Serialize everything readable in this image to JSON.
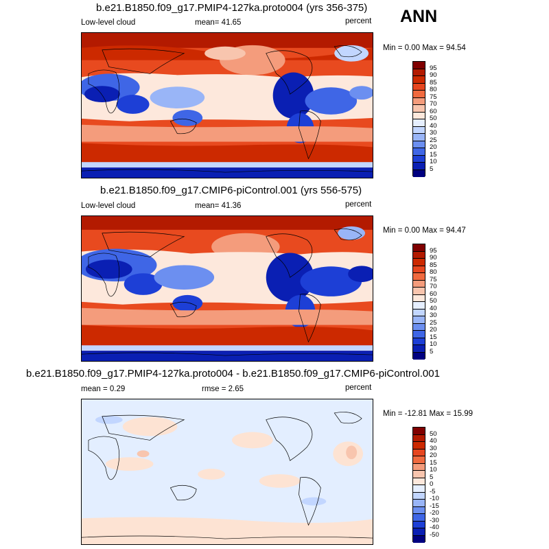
{
  "season": "ANN",
  "panels": [
    {
      "title": "b.e21.B1850.f09_g17.PMIP4-127ka.proto004 (yrs 356-375)",
      "left_label": "Low-level cloud",
      "mid_label": "mean=  41.65",
      "units": "percent",
      "minmax": "Min =  0.00 Max =  94.54",
      "colorbar": {
        "labels": [
          "95",
          "90",
          "85",
          "80",
          "75",
          "70",
          "60",
          "50",
          "40",
          "30",
          "25",
          "20",
          "15",
          "10",
          "5"
        ],
        "colors": [
          "#800000",
          "#b31a00",
          "#cc2900",
          "#e6461f",
          "#f06a3f",
          "#f49c7c",
          "#f8c5ae",
          "#fde8dc",
          "#e6efff",
          "#c2d6ff",
          "#99b5f7",
          "#6c8ff0",
          "#3f66e6",
          "#1d3fd6",
          "#0a1fb3",
          "#000080"
        ]
      }
    },
    {
      "title": "b.e21.B1850.f09_g17.CMIP6-piControl.001 (yrs 556-575)",
      "left_label": "Low-level cloud",
      "mid_label": "mean=  41.36",
      "units": "percent",
      "minmax": "Min =  0.00 Max =  94.47",
      "colorbar": {
        "labels": [
          "95",
          "90",
          "85",
          "80",
          "75",
          "70",
          "60",
          "50",
          "40",
          "30",
          "25",
          "20",
          "15",
          "10",
          "5"
        ],
        "colors": [
          "#800000",
          "#b31a00",
          "#cc2900",
          "#e6461f",
          "#f06a3f",
          "#f49c7c",
          "#f8c5ae",
          "#fde8dc",
          "#e6efff",
          "#c2d6ff",
          "#99b5f7",
          "#6c8ff0",
          "#3f66e6",
          "#1d3fd6",
          "#0a1fb3",
          "#000080"
        ]
      }
    },
    {
      "title": "b.e21.B1850.f09_g17.PMIP4-127ka.proto004 - b.e21.B1850.f09_g17.CMIP6-piControl.001",
      "left_label": "mean =   0.29",
      "mid_label": "rmse =   2.65",
      "units": "percent",
      "minmax": "Min = -12.81 Max =  15.99",
      "colorbar": {
        "labels": [
          "50",
          "40",
          "30",
          "20",
          "15",
          "10",
          "5",
          "0",
          "-5",
          "-10",
          "-15",
          "-20",
          "-30",
          "-40",
          "-50"
        ],
        "colors": [
          "#800000",
          "#b31a00",
          "#cc2900",
          "#e6461f",
          "#f06a3f",
          "#f49c7c",
          "#f8c5ae",
          "#fde8dc",
          "#e6efff",
          "#c2d6ff",
          "#99b5f7",
          "#6c8ff0",
          "#3f66e6",
          "#1d3fd6",
          "#0a1fb3",
          "#000080"
        ]
      }
    }
  ],
  "colors": {
    "deep_red": "#b31a00",
    "red": "#e84a1f",
    "salmon": "#f49c7c",
    "pale": "#fde8dc",
    "light_blue": "#c2d6ff",
    "blue": "#3f66e6",
    "navy": "#0a1fb3",
    "diff_bg": "#e3eeff",
    "diff_pos": "#fde3d3"
  }
}
